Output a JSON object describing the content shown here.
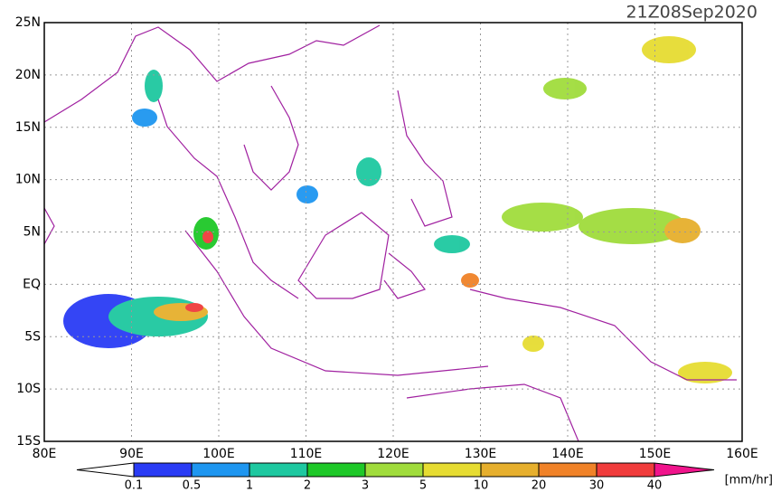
{
  "title": "21Z08Sep2020",
  "map": {
    "lat_labels": [
      "25N",
      "20N",
      "15N",
      "10N",
      "5N",
      "EQ",
      "5S",
      "10S",
      "15S"
    ],
    "lon_labels": [
      "80E",
      "90E",
      "100E",
      "110E",
      "120E",
      "130E",
      "140E",
      "150E",
      "160E"
    ]
  },
  "colorbar": {
    "labels": [
      "0.1",
      "0.5",
      "1",
      "2",
      "3",
      "5",
      "10",
      "20",
      "30",
      "40"
    ],
    "colors": [
      "#2a3cf5",
      "#1e96f0",
      "#1ec8a0",
      "#1ec828",
      "#a0dc3c",
      "#e6dc32",
      "#e6af2d",
      "#f08228",
      "#f03c3c"
    ],
    "low_color": "#ffffff",
    "high_color": "#f0148c",
    "unit": "[mm/hr]"
  }
}
